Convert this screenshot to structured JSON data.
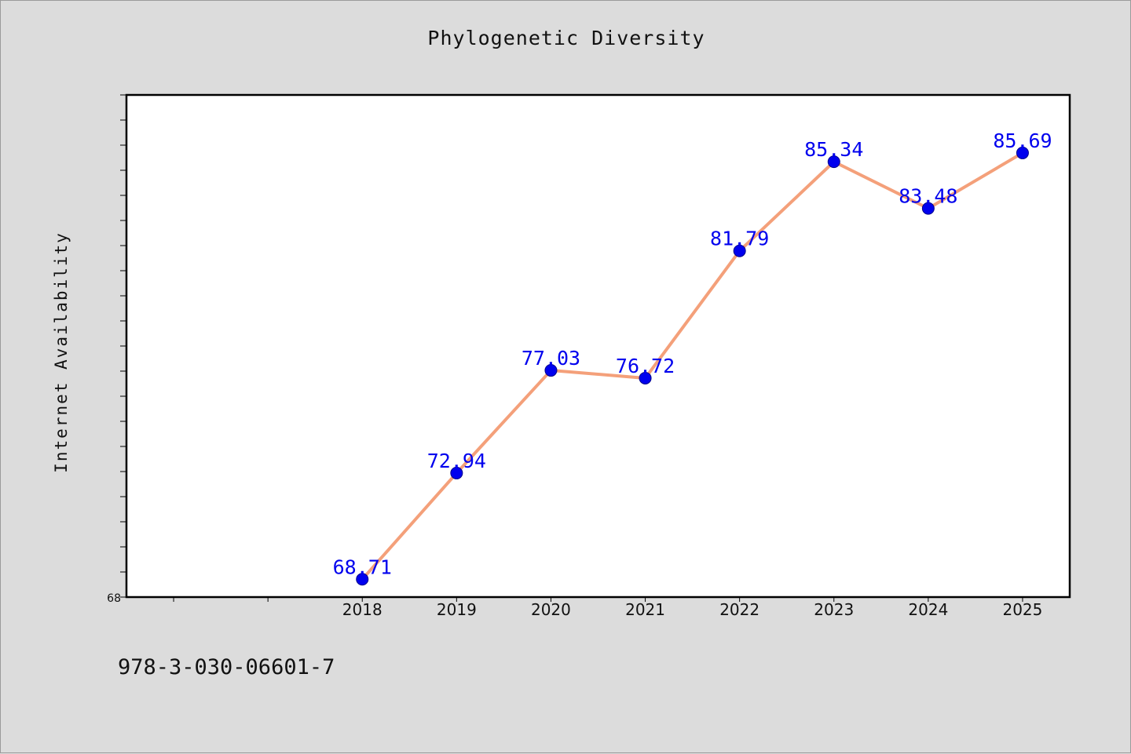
{
  "page": {
    "isbn": "978-3-030-06601-7"
  },
  "colors": {
    "background": "#dcdcdc",
    "plot_bg": "#ffffff",
    "line": "#f4a07a",
    "marker": "#0000ee",
    "data_label": "#0000ee"
  },
  "chart_data": {
    "type": "line",
    "title": "Phylogenetic Diversity",
    "xlabel": "",
    "ylabel": "Internet Availability",
    "categories": [
      "2018",
      "2019",
      "2020",
      "2021",
      "2022",
      "2023",
      "2024",
      "2025"
    ],
    "series": [
      {
        "values": [
          68.71,
          72.94,
          77.03,
          76.72,
          81.79,
          85.34,
          83.48,
          85.69
        ],
        "data_labels": [
          "68.71",
          "72.94",
          "77.03",
          "76.72",
          "81.79",
          "85.34",
          "83.48",
          "85.69"
        ]
      }
    ],
    "x_range": [
      2015.5,
      2025.5
    ],
    "ylim": [
      68,
      88
    ],
    "y_tick_labels": [
      "68"
    ],
    "grid": false,
    "legend": "none"
  }
}
